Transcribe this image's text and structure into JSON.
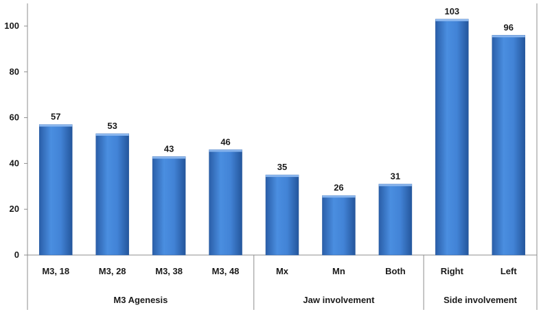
{
  "chart_data": {
    "type": "bar",
    "categories": [
      "M3, 18",
      "M3, 28",
      "M3, 38",
      "M3, 48",
      "Mx",
      "Mn",
      "Both",
      "Right",
      "Left"
    ],
    "values": [
      57,
      53,
      43,
      46,
      35,
      26,
      31,
      103,
      96
    ],
    "groups": [
      {
        "label": "M3 Agenesis",
        "count": 4
      },
      {
        "label": "Jaw involvement",
        "count": 3
      },
      {
        "label": "Side involvement",
        "count": 2
      }
    ],
    "yticks": [
      0,
      20,
      40,
      60,
      80,
      100
    ],
    "ylim": [
      0,
      115
    ],
    "grid": false,
    "bar_color": "#3f7ecf",
    "title": "",
    "xlabel": "",
    "ylabel": ""
  }
}
